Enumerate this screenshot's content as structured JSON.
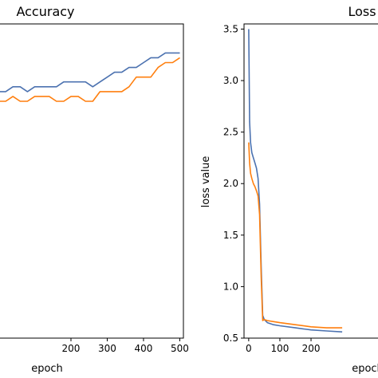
{
  "chart_data": [
    {
      "type": "line",
      "title": "Accuracy",
      "xlabel": "epoch",
      "ylabel": "",
      "xlim": [
        0,
        510
      ],
      "ylim": [
        0.35,
        1.0
      ],
      "xticks": [
        200,
        300,
        400,
        500
      ],
      "yticks": [],
      "series": [
        {
          "color": "#4c72b0",
          "x": [
            0,
            20,
            40,
            60,
            80,
            100,
            120,
            140,
            160,
            180,
            200,
            220,
            240,
            260,
            280,
            300,
            320,
            340,
            360,
            380,
            400,
            420,
            440,
            460,
            480,
            500
          ],
          "y": [
            0.86,
            0.86,
            0.87,
            0.87,
            0.86,
            0.87,
            0.87,
            0.87,
            0.87,
            0.88,
            0.88,
            0.88,
            0.88,
            0.87,
            0.88,
            0.89,
            0.9,
            0.9,
            0.91,
            0.91,
            0.92,
            0.93,
            0.93,
            0.94,
            0.94,
            0.94
          ]
        },
        {
          "color": "#ff7f0e",
          "x": [
            0,
            20,
            40,
            60,
            80,
            100,
            120,
            140,
            160,
            180,
            200,
            220,
            240,
            260,
            280,
            300,
            320,
            340,
            360,
            380,
            400,
            420,
            440,
            460,
            480,
            500
          ],
          "y": [
            0.84,
            0.84,
            0.85,
            0.84,
            0.84,
            0.85,
            0.85,
            0.85,
            0.84,
            0.84,
            0.85,
            0.85,
            0.84,
            0.84,
            0.86,
            0.86,
            0.86,
            0.86,
            0.87,
            0.89,
            0.89,
            0.89,
            0.91,
            0.92,
            0.92,
            0.93
          ]
        }
      ]
    },
    {
      "type": "line",
      "title": "Loss",
      "xlabel": "epoch",
      "ylabel": "loss value",
      "xlim": [
        -15,
        420
      ],
      "ylim": [
        0.5,
        3.55
      ],
      "xticks": [
        0,
        100,
        200
      ],
      "yticks": [
        0.5,
        1.0,
        1.5,
        2.0,
        2.5,
        3.0,
        3.5
      ],
      "series": [
        {
          "color": "#4c72b0",
          "x": [
            0,
            3,
            6,
            10,
            15,
            20,
            25,
            30,
            35,
            40,
            45,
            50,
            60,
            80,
            100,
            150,
            200,
            250,
            300
          ],
          "y": [
            3.5,
            2.6,
            2.4,
            2.3,
            2.25,
            2.2,
            2.15,
            2.05,
            1.8,
            1.2,
            0.72,
            0.68,
            0.65,
            0.63,
            0.62,
            0.6,
            0.58,
            0.57,
            0.56
          ]
        },
        {
          "color": "#ff7f0e",
          "x": [
            0,
            3,
            6,
            10,
            15,
            20,
            25,
            30,
            35,
            40,
            45,
            50,
            60,
            80,
            100,
            150,
            200,
            250,
            300
          ],
          "y": [
            2.4,
            2.2,
            2.1,
            2.05,
            2.0,
            1.97,
            1.93,
            1.88,
            1.7,
            1.1,
            0.67,
            0.68,
            0.67,
            0.66,
            0.65,
            0.63,
            0.61,
            0.6,
            0.6
          ]
        }
      ]
    }
  ]
}
